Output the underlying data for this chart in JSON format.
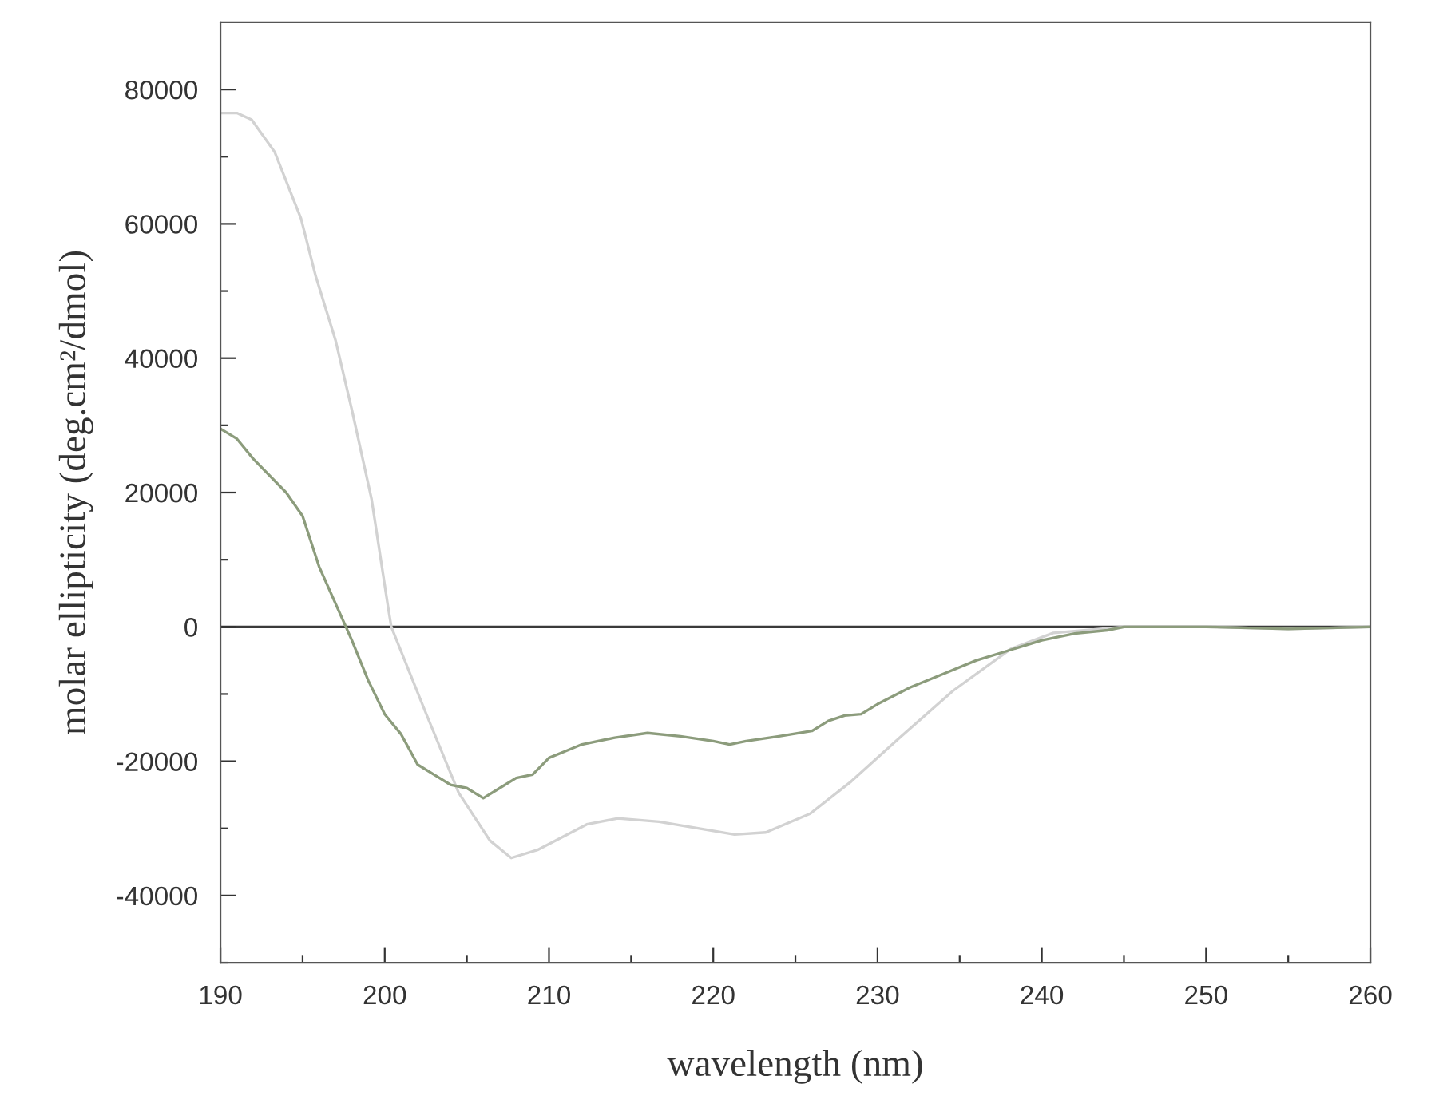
{
  "chart_data": {
    "type": "line",
    "xlabel": "wavelength (nm)",
    "ylabel": "molar ellipticity (deg.cm²/dmol)",
    "xlim": [
      190,
      260
    ],
    "ylim": [
      -50000,
      90000
    ],
    "xticks": [
      190,
      {
        "value": 195,
        "label": null
      },
      200,
      {
        "value": 205,
        "label": null
      },
      210,
      {
        "value": 215,
        "label": null
      },
      220,
      {
        "value": 225,
        "label": null
      },
      230,
      {
        "value": 235,
        "label": null
      },
      240,
      {
        "value": 245,
        "label": null
      },
      250,
      {
        "value": 255,
        "label": null
      },
      260
    ],
    "yticks": [
      {
        "value": -50000,
        "label": null
      },
      -40000,
      {
        "value": -30000,
        "label": null
      },
      -20000,
      {
        "value": -10000,
        "label": null
      },
      0,
      {
        "value": 10000,
        "label": null
      },
      20000,
      {
        "value": 30000,
        "label": null
      },
      40000,
      {
        "value": 50000,
        "label": null
      },
      60000,
      {
        "value": 70000,
        "label": null
      },
      80000
    ],
    "grid": false,
    "marker": "none",
    "line_style": "solid",
    "ref_lines": [
      {
        "axis": "y",
        "value": 0,
        "color": "#3a3a3a"
      }
    ],
    "series": [
      {
        "color": "#d2d2d2",
        "x": [
          190,
          191,
          191.9,
          193.3,
          194.9,
          195.8,
          197.0,
          198.0,
          199.2,
          200.2,
          200.4,
          202.5,
          204.5,
          206.4,
          207.7,
          209.3,
          212.3,
          214.2,
          216.7,
          221.3,
          223.2,
          225.9,
          228.4,
          231.3,
          234.6,
          238.1,
          240.7,
          245,
          250,
          255,
          260
        ],
        "values": [
          76500,
          76500,
          75500,
          70700,
          60800,
          52200,
          42700,
          32300,
          19000,
          3000,
          0,
          -12800,
          -24700,
          -31800,
          -34400,
          -33200,
          -29400,
          -28500,
          -29000,
          -30900,
          -30600,
          -27800,
          -23000,
          -16600,
          -9500,
          -3300,
          -900,
          0,
          0,
          -300,
          0
        ]
      },
      {
        "color": "#8c9c7c",
        "x": [
          190,
          191,
          192,
          194,
          195,
          196,
          197,
          198,
          199,
          200,
          201,
          202,
          203,
          204,
          205,
          206,
          207,
          208,
          209,
          210,
          211,
          212,
          214,
          216,
          218,
          220,
          221,
          222,
          224,
          226,
          227,
          228,
          229,
          230,
          232,
          234,
          236,
          238,
          240,
          242,
          244,
          245,
          250,
          255,
          260
        ],
        "values": [
          29500,
          28000,
          25000,
          20000,
          16500,
          9000,
          3500,
          -2000,
          -8000,
          -13000,
          -16000,
          -20500,
          -22000,
          -23500,
          -24000,
          -25500,
          -24000,
          -22500,
          -22000,
          -19500,
          -18500,
          -17500,
          -16500,
          -15800,
          -16300,
          -17000,
          -17500,
          -17000,
          -16300,
          -15500,
          -14000,
          -13200,
          -13000,
          -11500,
          -9000,
          -7000,
          -5000,
          -3500,
          -2000,
          -1000,
          -500,
          0,
          0,
          -300,
          0
        ]
      }
    ]
  }
}
